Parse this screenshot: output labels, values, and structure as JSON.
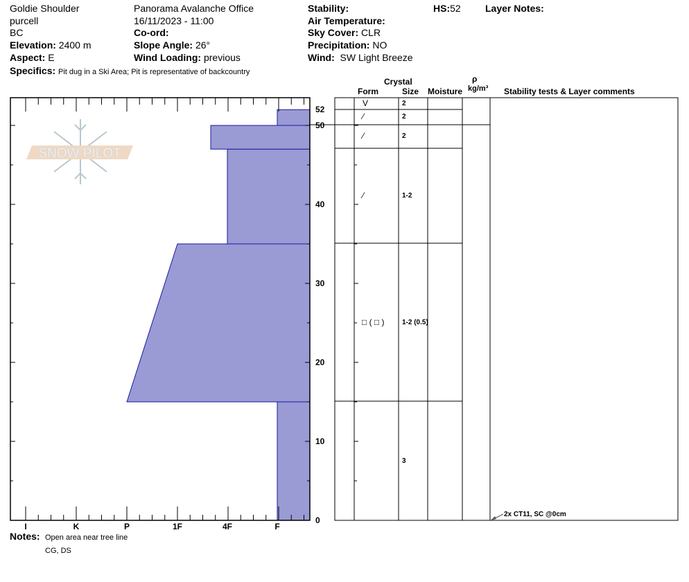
{
  "header": {
    "location": "Goldie Shoulder",
    "range": "purcell",
    "state": "BC",
    "elevation_label": "Elevation:",
    "elevation": "2400 m",
    "aspect_label": "Aspect:",
    "aspect": "E",
    "specifics_label": "Specifics:",
    "specifics": "Pit dug in a Ski Area; Pit is representative of backcountry",
    "operation": "Panorama Avalanche Office",
    "datetime": "16/11/2023 - 11:00",
    "coord_label": "Co-ord:",
    "slope_label": "Slope Angle:",
    "slope": "26°",
    "wind_loading_label": "Wind Loading:",
    "wind_loading": "previous",
    "stability_label": "Stability:",
    "air_temp_label": "Air Temperature:",
    "sky_label": "Sky Cover:",
    "sky": "CLR",
    "precip_label": "Precipitation:",
    "precip": "NO",
    "wind_label": "Wind:",
    "wind": "SW Light Breeze",
    "hs_label": "HS:",
    "hs": "52",
    "layer_notes_label": "Layer Notes:"
  },
  "watermark": "SNOW PILOT",
  "chart_data": {
    "type": "area",
    "xlabel": "",
    "ylabel": "",
    "x_tick_labels": [
      "I",
      "K",
      "P",
      "1F",
      "4F",
      "F"
    ],
    "y_ticks": [
      0,
      10,
      20,
      30,
      40,
      50,
      52
    ],
    "ylim": [
      0,
      53.5
    ],
    "layers": [
      {
        "bottom": 0,
        "top": 15,
        "hardness_bottom": "F",
        "hardness_top": "F"
      },
      {
        "bottom": 15,
        "top": 35,
        "hardness_bottom": "P",
        "hardness_top": "1F"
      },
      {
        "bottom": 35,
        "top": 47,
        "hardness_bottom": "4F",
        "hardness_top": "4F"
      },
      {
        "bottom": 47,
        "top": 50,
        "hardness_bottom": "4F-",
        "hardness_top": "4F-"
      },
      {
        "bottom": 50,
        "top": 52,
        "hardness_bottom": "F",
        "hardness_top": "F"
      }
    ],
    "fill_color": "#9a9ad4",
    "stroke_color": "#1a1aa0"
  },
  "table": {
    "crystal_label": "Crystal",
    "form_label": "Form",
    "size_label": "Size",
    "moisture_label": "Moisture",
    "rho_label": "ρ",
    "density_unit": "kg/m³",
    "comments_label": "Stability tests & Layer comments",
    "rows": [
      {
        "form": "V",
        "size": "2"
      },
      {
        "form": "⁄",
        "size": "2"
      },
      {
        "form": "⁄",
        "size": "2"
      },
      {
        "form": "⁄",
        "size": "1-2"
      },
      {
        "form": "□ ( □ )",
        "size": "1-2 (0.5)"
      },
      {
        "form": "",
        "size": "3"
      }
    ],
    "stability_test": "2x CT11, SC @0cm"
  },
  "notes": {
    "label": "Notes:",
    "lines": [
      "Open area near tree line",
      "CG, DS"
    ]
  }
}
